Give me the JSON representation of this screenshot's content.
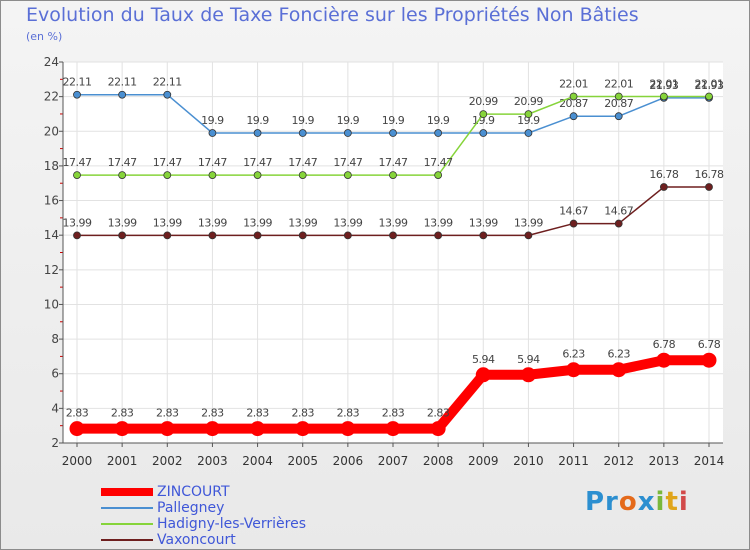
{
  "chart_data": {
    "type": "line",
    "title": "Evolution du Taux de Taxe Foncière sur les Propriétés Non Bâties",
    "ylabel": "(en %)",
    "xlabel": "",
    "ylim": [
      2,
      24
    ],
    "yticks": [
      2,
      4,
      6,
      8,
      10,
      12,
      14,
      16,
      18,
      20,
      22,
      24
    ],
    "categories": [
      "2000",
      "2001",
      "2002",
      "2003",
      "2004",
      "2005",
      "2006",
      "2007",
      "2008",
      "2009",
      "2010",
      "2011",
      "2012",
      "2013",
      "2014"
    ],
    "series": [
      {
        "name": "Pallegney",
        "color": "#4a8fd1",
        "values": [
          22.11,
          22.11,
          22.11,
          19.9,
          19.9,
          19.9,
          19.9,
          19.9,
          19.9,
          19.9,
          19.9,
          20.87,
          20.87,
          21.93,
          21.93
        ],
        "labels": [
          "22.11",
          "22.11",
          "22.11",
          "19.9",
          "19.9",
          "19.9",
          "19.9",
          "19.9",
          "19.9",
          "19.9",
          "19.9",
          "20.87",
          "20.87",
          "21.93",
          "21.93"
        ]
      },
      {
        "name": "Hadigny-les-Verrières",
        "color": "#86d43a",
        "values": [
          17.47,
          17.47,
          17.47,
          17.47,
          17.47,
          17.47,
          17.47,
          17.47,
          17.47,
          20.99,
          20.99,
          22.01,
          22.01,
          22.01,
          22.01
        ],
        "labels": [
          "17.47",
          "17.47",
          "17.47",
          "17.47",
          "17.47",
          "17.47",
          "17.47",
          "17.47",
          "17.47",
          "20.99",
          "20.99",
          "22.01",
          "22.01",
          "22.01",
          "22.01"
        ]
      },
      {
        "name": "Vaxoncourt",
        "color": "#6e1f1f",
        "values": [
          13.99,
          13.99,
          13.99,
          13.99,
          13.99,
          13.99,
          13.99,
          13.99,
          13.99,
          13.99,
          13.99,
          14.67,
          14.67,
          16.78,
          16.78
        ],
        "labels": [
          "13.99",
          "13.99",
          "13.99",
          "13.99",
          "13.99",
          "13.99",
          "13.99",
          "13.99",
          "13.99",
          "13.99",
          "13.99",
          "14.67",
          "14.67",
          "16.78",
          "16.78"
        ]
      },
      {
        "name": "ZINCOURT",
        "color": "#ff0000",
        "bold": true,
        "values": [
          2.83,
          2.83,
          2.83,
          2.83,
          2.83,
          2.83,
          2.83,
          2.83,
          2.83,
          5.94,
          5.94,
          6.23,
          6.23,
          6.78,
          6.78
        ],
        "labels": [
          "2.83",
          "2.83",
          "2.83",
          "2.83",
          "2.83",
          "2.83",
          "2.83",
          "2.83",
          "2.83",
          "5.94",
          "5.94",
          "6.23",
          "6.23",
          "6.78",
          "6.78"
        ]
      }
    ]
  },
  "legend": [
    {
      "name": "ZINCOURT",
      "color": "#ff0000",
      "bold": true
    },
    {
      "name": "Pallegney",
      "color": "#4a8fd1",
      "bold": false
    },
    {
      "name": "Hadigny-les-Verrières",
      "color": "#86d43a",
      "bold": false
    },
    {
      "name": "Vaxoncourt",
      "color": "#6e1f1f",
      "bold": false
    }
  ],
  "brand": {
    "p1": "Pr",
    "p2": "o",
    "p3": "x",
    "p4": "i",
    "p5": "t",
    "p6": "i"
  }
}
